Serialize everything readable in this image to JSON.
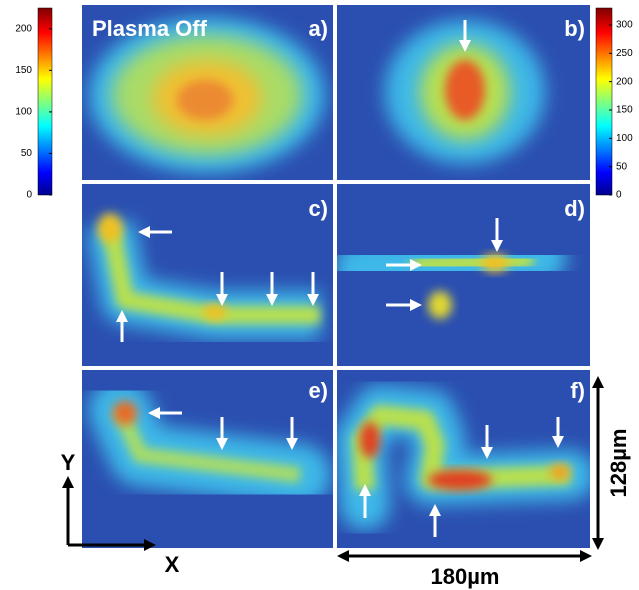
{
  "colorbars": [
    {
      "ticks": [
        0,
        50,
        100,
        150,
        200
      ],
      "lim": [
        0,
        225
      ]
    },
    {
      "ticks": [
        0,
        50,
        100,
        150,
        200,
        250,
        300
      ],
      "lim": [
        0,
        330
      ]
    }
  ],
  "panels": [
    {
      "label": "a)",
      "note": "Plasma Off"
    },
    {
      "label": "b)"
    },
    {
      "label": "c)"
    },
    {
      "label": "d)"
    },
    {
      "label": "e)"
    },
    {
      "label": "f)"
    }
  ],
  "axes": {
    "y": "Y",
    "x": "X"
  },
  "scale": {
    "width": "180µm",
    "height": "128µm"
  }
}
